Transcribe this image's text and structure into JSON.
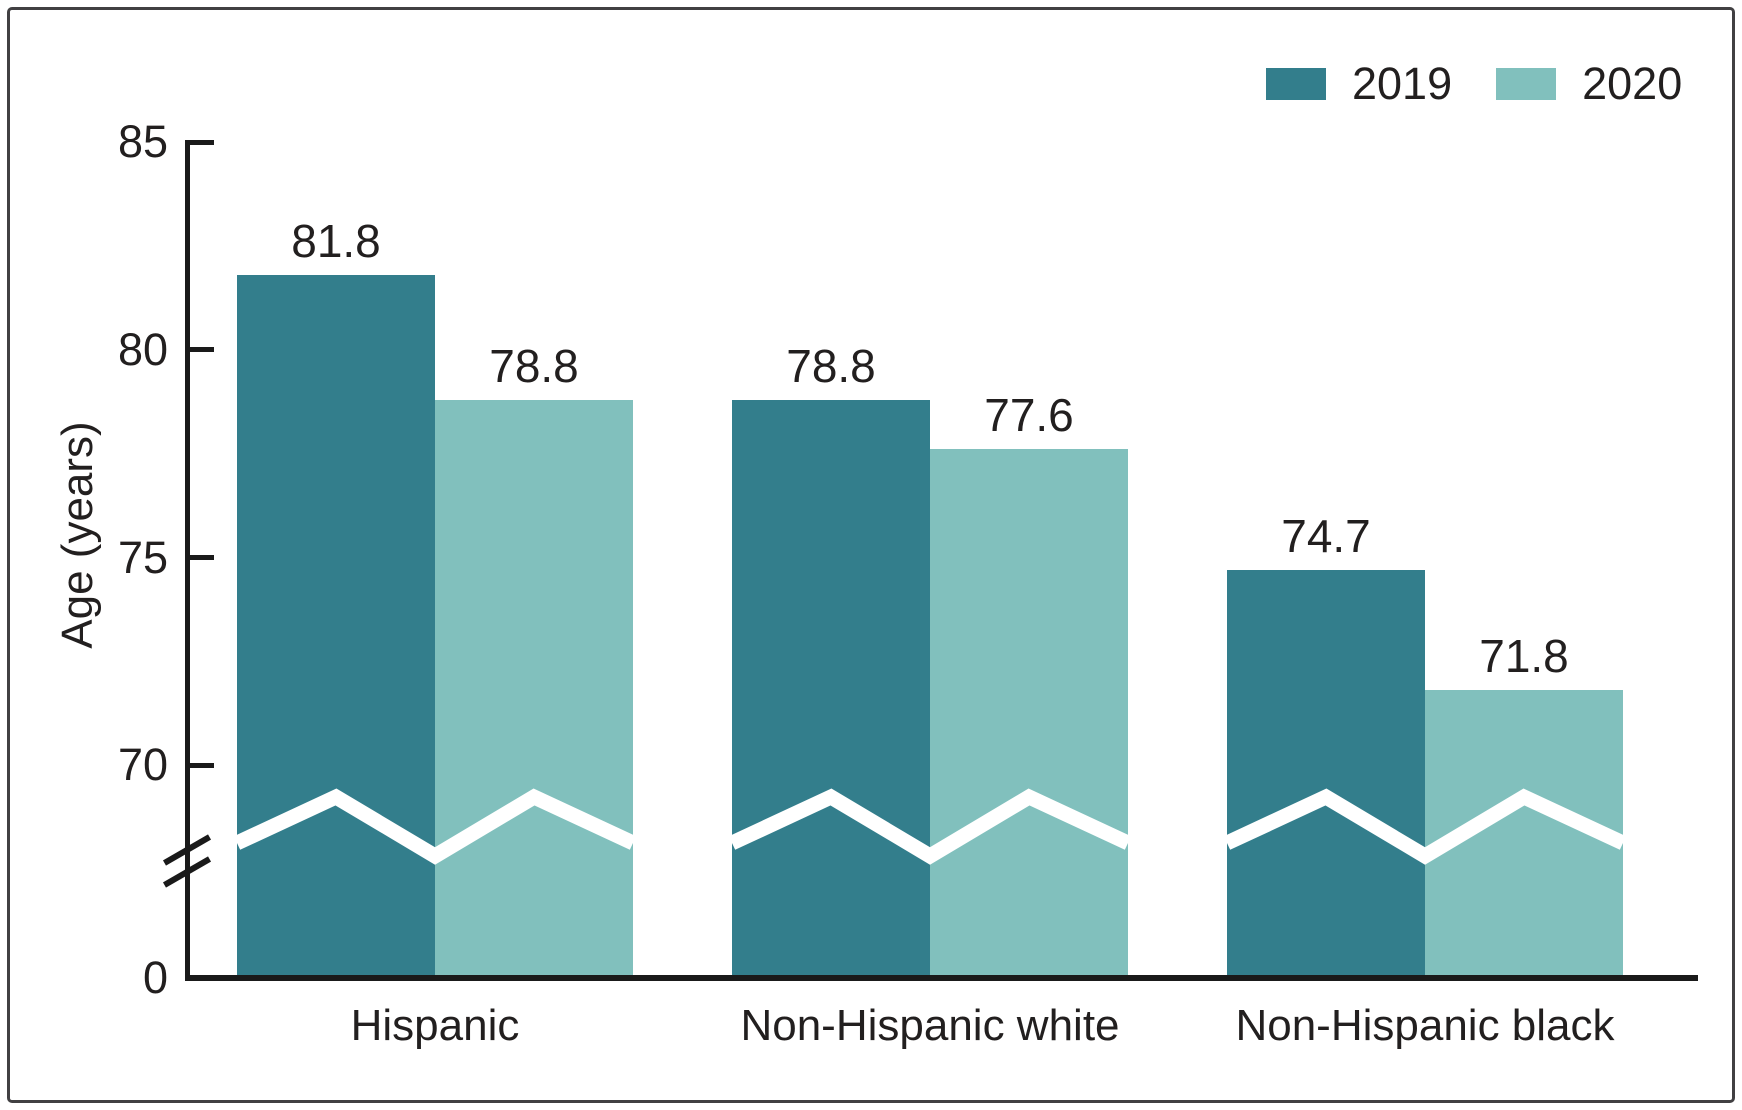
{
  "chart_data": {
    "type": "bar",
    "title": "",
    "categories": [
      "Hispanic",
      "Non-Hispanic white",
      "Non-Hispanic black"
    ],
    "series": [
      {
        "name": "2019",
        "color": "#337e8c",
        "values": [
          81.8,
          78.8,
          74.7
        ]
      },
      {
        "name": "2020",
        "color": "#81c0bd",
        "values": [
          78.8,
          77.6,
          71.8
        ]
      }
    ],
    "ylabel": "Age (years)",
    "xlabel": "",
    "y_ticks_visible": [
      "85",
      "80",
      "75",
      "70"
    ],
    "y_origin_label": "0",
    "ylim": [
      0,
      85
    ],
    "ylim_visible": [
      70,
      85
    ],
    "axis_break": true,
    "grid": false,
    "legend_position": "top-right",
    "value_labels": {
      "Hispanic": {
        "2019": "81.8",
        "2020": "78.8"
      },
      "Non-Hispanic white": {
        "2019": "78.8",
        "2020": "77.6"
      },
      "Non-Hispanic black": {
        "2019": "74.7",
        "2020": "71.8"
      }
    }
  },
  "colors": {
    "series_2019": "#337e8c",
    "series_2020": "#81c0bd",
    "axis": "#1a1a1a",
    "text": "#221f1f",
    "background": "#ffffff",
    "figure_border": "#414042",
    "break_marker_white": "#ffffff"
  }
}
